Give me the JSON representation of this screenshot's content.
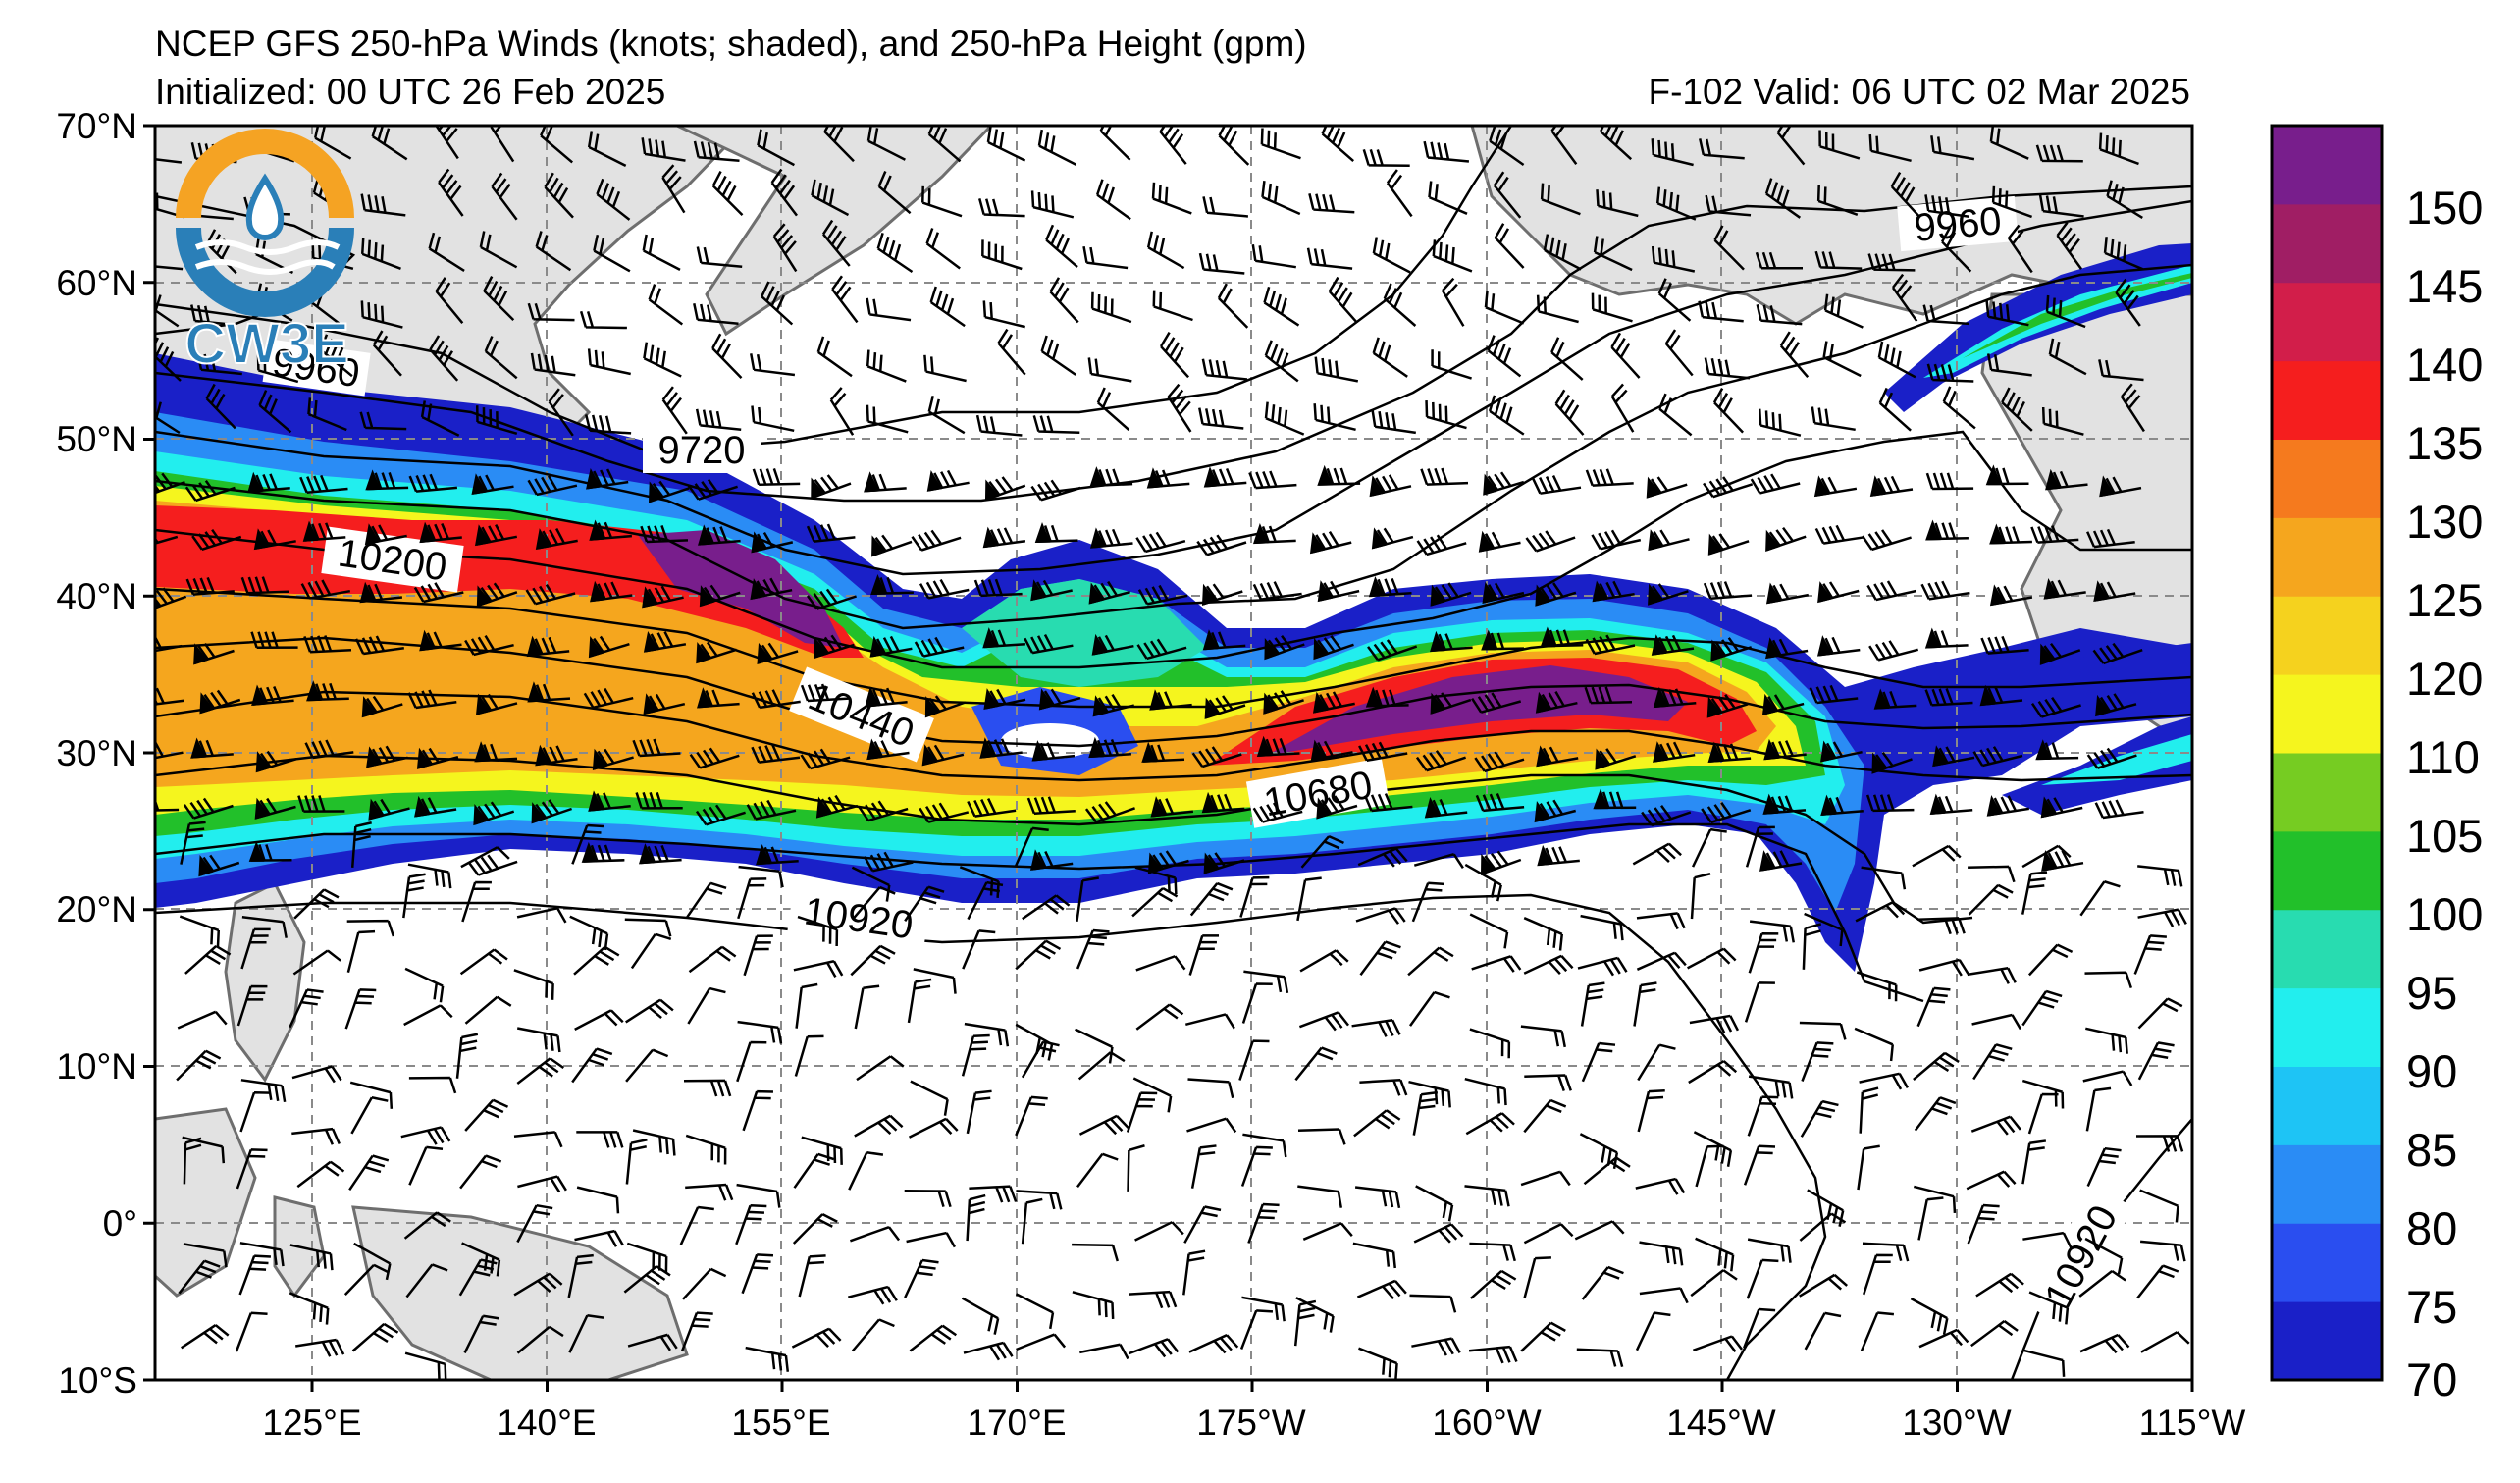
{
  "header": {
    "title": "NCEP GFS 250-hPa Winds (knots; shaded), and 250-hPa Height (gpm)",
    "initialized": "Initialized: 00 UTC 26 Feb 2025",
    "valid": "F-102  Valid: 06 UTC 02 Mar 2025"
  },
  "logo": {
    "text": "CW3E"
  },
  "map": {
    "lat_range": [
      -10,
      70
    ],
    "lon_range_east": [
      115,
      245
    ],
    "lat_labels": [
      "70°N",
      "60°N",
      "50°N",
      "40°N",
      "30°N",
      "20°N",
      "10°N",
      "0°",
      "10°S"
    ],
    "lon_labels": [
      "125°E",
      "140°E",
      "155°E",
      "170°E",
      "175°W",
      "160°W",
      "145°W",
      "130°W",
      "115°W"
    ],
    "contour_labels": [
      "9720",
      "9960",
      "9960",
      "10200",
      "10440",
      "10680",
      "10920",
      "10920"
    ],
    "land_color": "#e2e2e2",
    "coast_color": "#6e6e6e",
    "grid": true
  },
  "colorbar": {
    "labels": [
      "150",
      "145",
      "140",
      "135",
      "130",
      "125",
      "120",
      "110",
      "105",
      "100",
      "95",
      "90",
      "85",
      "80",
      "75",
      "70"
    ],
    "levels": [
      70,
      75,
      80,
      85,
      90,
      95,
      100,
      105,
      110,
      120,
      125,
      130,
      135,
      140,
      145,
      150,
      155
    ],
    "colors": [
      "#1a20c8",
      "#2a4ef0",
      "#2a8cf5",
      "#1ec4f5",
      "#22eeee",
      "#28dcb0",
      "#22c02a",
      "#76cc22",
      "#f5f51e",
      "#f5d21e",
      "#f5a61e",
      "#f57a1e",
      "#f51e1e",
      "#d21e4a",
      "#a01e64",
      "#781e8c"
    ]
  }
}
